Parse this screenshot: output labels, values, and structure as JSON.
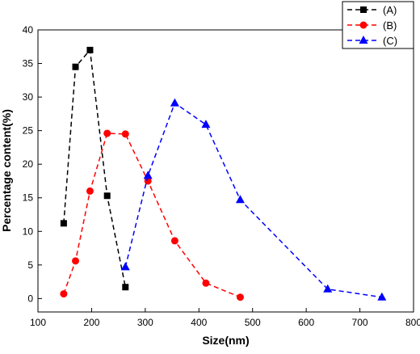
{
  "chart_data": {
    "type": "line",
    "title": "",
    "xlabel": "Size(nm)",
    "ylabel": "Percentage content(%)",
    "xlim": [
      100,
      800
    ],
    "ylim": [
      -2,
      40
    ],
    "xticks": [
      100,
      200,
      300,
      400,
      500,
      600,
      700,
      800
    ],
    "yticks": [
      0,
      5,
      10,
      15,
      20,
      25,
      30,
      35,
      40
    ],
    "grid": false,
    "legend_position": "top-right",
    "series": [
      {
        "name": "(A)",
        "color": "#000000",
        "marker": "square",
        "line_style": "dashed",
        "x": [
          148,
          170,
          197,
          229,
          263
        ],
        "y": [
          11.2,
          34.5,
          37.0,
          15.3,
          1.7
        ]
      },
      {
        "name": "(B)",
        "color": "#ff0000",
        "marker": "circle",
        "line_style": "dashed",
        "x": [
          148,
          170,
          197,
          229,
          263,
          305,
          355,
          413,
          477
        ],
        "y": [
          0.7,
          5.6,
          16.0,
          24.6,
          24.5,
          17.5,
          8.6,
          2.3,
          0.2
        ]
      },
      {
        "name": "(C)",
        "color": "#0000ff",
        "marker": "triangle",
        "line_style": "dashed",
        "x": [
          263,
          305,
          355,
          413,
          477,
          640,
          741
        ],
        "y": [
          4.7,
          18.3,
          29.1,
          25.9,
          14.7,
          1.4,
          0.2
        ]
      }
    ]
  }
}
